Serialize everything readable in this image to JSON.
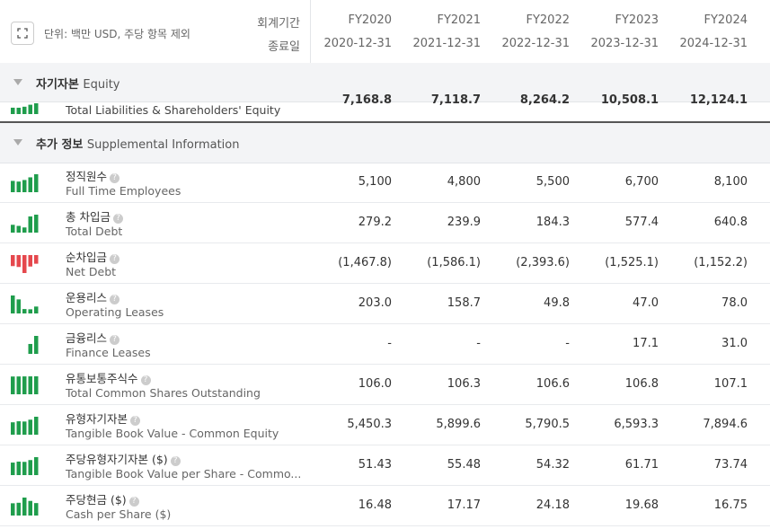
{
  "header": {
    "unit": "단위: 백만 USD, 주당 항목 제외",
    "period_label": "회계기간",
    "end_label": "종료일",
    "columns": [
      {
        "fy": "FY2020",
        "date": "2020-12-31"
      },
      {
        "fy": "FY2021",
        "date": "2021-12-31"
      },
      {
        "fy": "FY2022",
        "date": "2022-12-31"
      },
      {
        "fy": "FY2023",
        "date": "2023-12-31"
      },
      {
        "fy": "FY2024",
        "date": "2024-12-31"
      }
    ]
  },
  "equity_section": {
    "title_ko": "자기자본",
    "title_en": "Equity"
  },
  "partial_row": {
    "name_en": "Total Liabilities & Shareholders' Equity",
    "values": [
      "7,168.8",
      "7,118.7",
      "8,264.2",
      "10,508.1",
      "12,124.1"
    ]
  },
  "supplemental_section": {
    "title_ko": "추가 정보",
    "title_en": "Supplemental Information"
  },
  "rows": [
    {
      "name_ko": "정직원수",
      "name_en": "Full Time Employees",
      "values": [
        "5,100",
        "4,800",
        "5,500",
        "6,700",
        "8,100"
      ]
    },
    {
      "name_ko": "총 차입금",
      "name_en": "Total Debt",
      "values": [
        "279.2",
        "239.9",
        "184.3",
        "577.4",
        "640.8"
      ]
    },
    {
      "name_ko": "순차입금",
      "name_en": "Net Debt",
      "values": [
        "(1,467.8)",
        "(1,586.1)",
        "(2,393.6)",
        "(1,525.1)",
        "(1,152.2)"
      ]
    },
    {
      "name_ko": "운용리스",
      "name_en": "Operating Leases",
      "values": [
        "203.0",
        "158.7",
        "49.8",
        "47.0",
        "78.0"
      ]
    },
    {
      "name_ko": "금융리스",
      "name_en": "Finance Leases",
      "values": [
        "-",
        "-",
        "-",
        "17.1",
        "31.0"
      ]
    },
    {
      "name_ko": "유통보통주식수",
      "name_en": "Total Common Shares Outstanding",
      "values": [
        "106.0",
        "106.3",
        "106.6",
        "106.8",
        "107.1"
      ]
    },
    {
      "name_ko": "유형자기자본",
      "name_en": "Tangible Book Value - Common Equity",
      "values": [
        "5,450.3",
        "5,899.6",
        "5,790.5",
        "6,593.3",
        "7,894.6"
      ]
    },
    {
      "name_ko": "주당유형자기자본 ($)",
      "name_en": "Tangible Book Value per Share - Commo...",
      "values": [
        "51.43",
        "55.48",
        "54.32",
        "61.71",
        "73.74"
      ]
    },
    {
      "name_ko": "주당현금 ($)",
      "name_en": "Cash per Share ($)",
      "values": [
        "16.48",
        "17.17",
        "24.18",
        "19.68",
        "16.75"
      ]
    }
  ]
}
